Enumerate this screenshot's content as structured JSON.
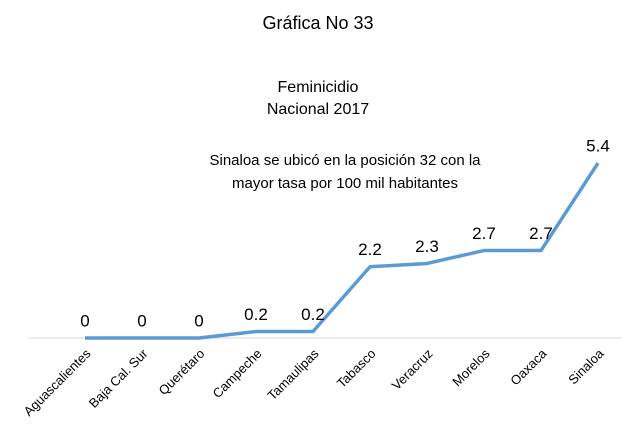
{
  "chart_data": {
    "type": "line",
    "title": "Gráfica No 33",
    "subtitle": [
      "Feminicidio",
      "Nacional 2017"
    ],
    "annotation": [
      "Sinaloa se ubicó en la posición 32 con la",
      "mayor tasa por 100 mil habitantes"
    ],
    "categories": [
      "Aguascalientes",
      "Baja Cal. Sur",
      "Querétaro",
      "Campeche",
      "Tamaulipas",
      "Tabasco",
      "Veracruz",
      "Morelos",
      "Oaxaca",
      "Sinaloa"
    ],
    "values": [
      0,
      0,
      0,
      0.2,
      0.2,
      2.2,
      2.3,
      2.7,
      2.7,
      5.4
    ],
    "color": "#5b9bd5",
    "ylim": [
      0,
      6
    ]
  }
}
